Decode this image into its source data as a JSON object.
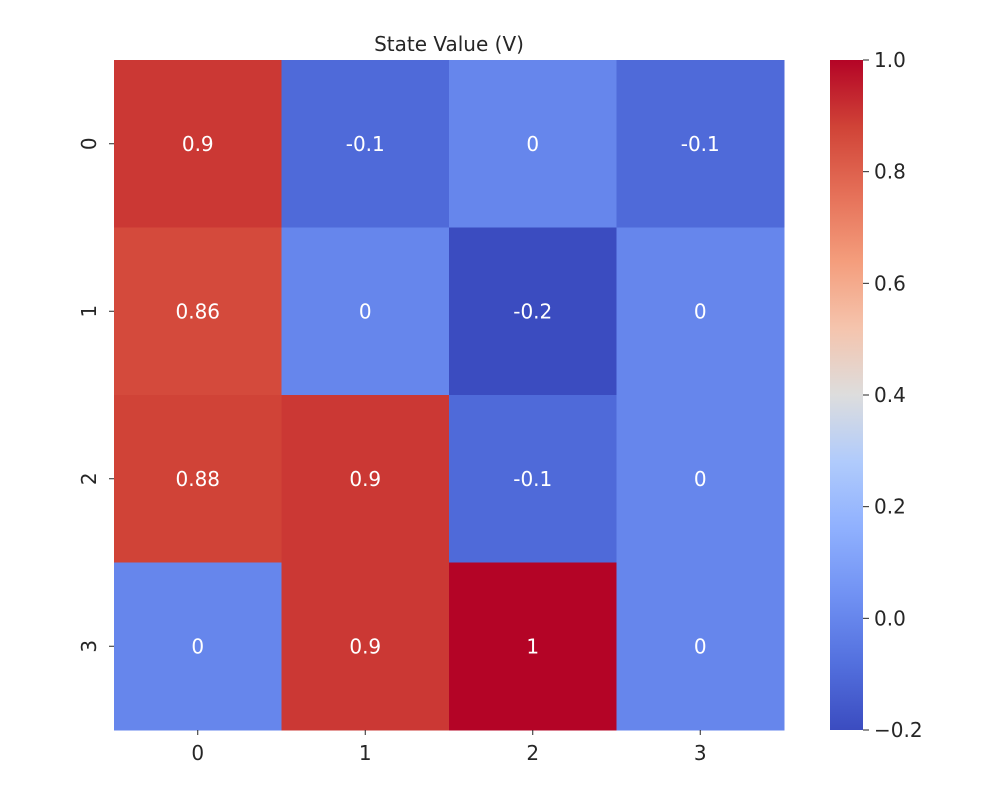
{
  "chart_data": {
    "type": "heatmap",
    "title": "State Value (V)",
    "xlabel": "",
    "ylabel": "",
    "x_categories": [
      "0",
      "1",
      "2",
      "3"
    ],
    "y_categories": [
      "0",
      "1",
      "2",
      "3"
    ],
    "values": [
      [
        0.9,
        -0.1,
        0.0,
        -0.1
      ],
      [
        0.86,
        0.0,
        -0.2,
        0.0
      ],
      [
        0.88,
        0.9,
        -0.1,
        0.0
      ],
      [
        0.0,
        0.9,
        1.0,
        0.0
      ]
    ],
    "annotations": [
      [
        "0.9",
        "-0.1",
        "0",
        "-0.1"
      ],
      [
        "0.86",
        "0",
        "-0.2",
        "0"
      ],
      [
        "0.88",
        "0.9",
        "-0.1",
        "0"
      ],
      [
        "0",
        "0.9",
        "1",
        "0"
      ]
    ],
    "colormap": "coolwarm",
    "vmin": -0.2,
    "vmax": 1.0,
    "colorbar_ticks": [
      -0.2,
      0.0,
      0.2,
      0.4,
      0.6,
      0.8,
      1.0
    ],
    "colorbar_tick_labels": [
      "−0.2",
      "0.0",
      "0.2",
      "0.4",
      "0.6",
      "0.8",
      "1.0"
    ],
    "annotation_color": "#ffffff"
  }
}
